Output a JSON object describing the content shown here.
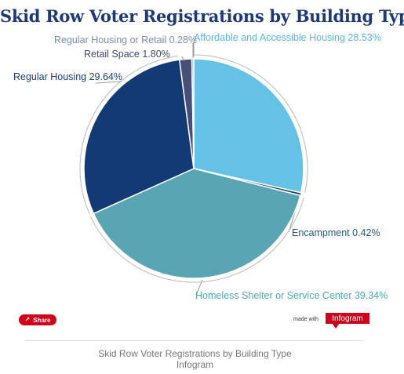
{
  "chart_data": {
    "type": "pie",
    "title": "Skid Row Voter Registrations by Building Type",
    "slices": [
      {
        "label": "Affordable and Accessible Housing",
        "value": 28.53,
        "display": "Affordable and Accessible Housing 28.53%",
        "color": "#65c1e6",
        "text_color": "#5ab5e1"
      },
      {
        "label": "Encampment",
        "value": 0.42,
        "display": "Encampment 0.42%",
        "color": "#1f4f66",
        "text_color": "#245a74"
      },
      {
        "label": "Homeless Shelter or Service Center",
        "value": 39.34,
        "display": "Homeless Shelter or Service Center 39.34%",
        "color": "#5aa5b3",
        "text_color": "#4aa7b8"
      },
      {
        "label": "Regular Housing",
        "value": 29.64,
        "display": "Regular Housing 29.64%",
        "color": "#133a74",
        "text_color": "#1b3f73"
      },
      {
        "label": "Retail Space",
        "value": 1.8,
        "display": "Retail Space 1.80%",
        "color": "#474f78",
        "text_color": "#3e4870"
      },
      {
        "label": "Regular Housing or Retail",
        "value": 0.28,
        "display": "Regular Housing or Retail 0.28%",
        "color": "#9aa6c7",
        "text_color": "#7e8aab"
      }
    ]
  },
  "footer": {
    "share_label": "Share",
    "made_with": "made with",
    "brand": "Infogram",
    "caption_title": "Skid Row Voter Registrations by Building Type",
    "caption_source": "Infogram"
  },
  "colors": {
    "title": "#1d3a75",
    "brand_red": "#d0021b"
  },
  "icons": {
    "share": "share-icon"
  }
}
